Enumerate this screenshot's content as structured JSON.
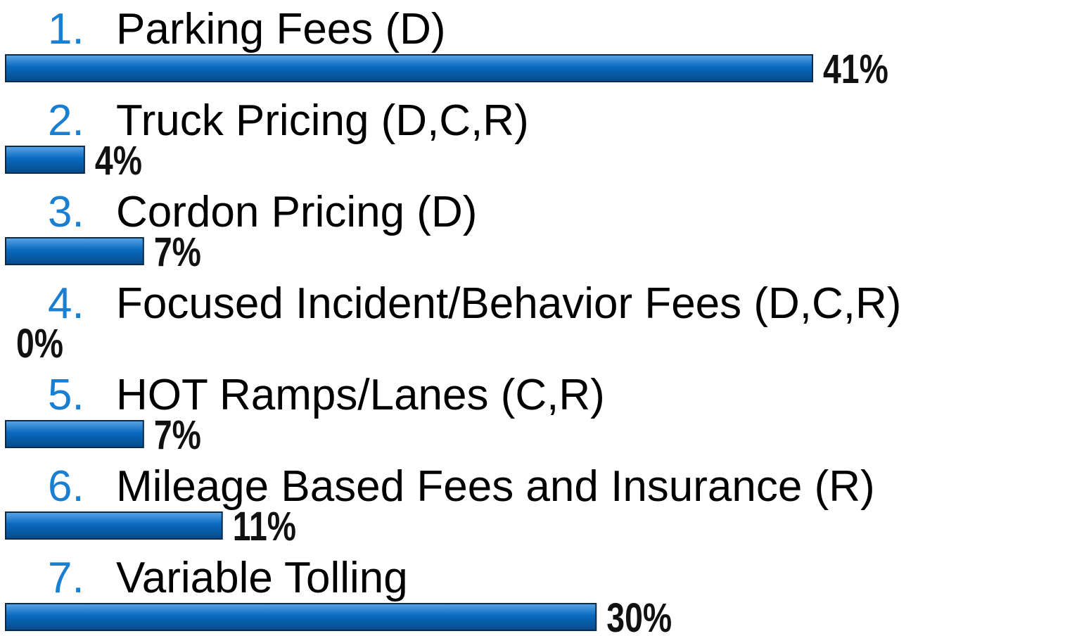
{
  "chart_data": {
    "type": "bar",
    "orientation": "horizontal",
    "numbers": [
      "1.",
      "2.",
      "3.",
      "4.",
      "5.",
      "6.",
      "7."
    ],
    "categories": [
      "Parking Fees (D)",
      "Truck Pricing (D,C,R)",
      "Cordon Pricing (D)",
      "Focused Incident/Behavior Fees (D,C,R)",
      "HOT Ramps/Lanes (C,R)",
      "Mileage Based Fees and Insurance (R)",
      "Variable Tolling"
    ],
    "values": [
      41,
      4,
      7,
      0,
      7,
      11,
      30
    ],
    "value_labels": [
      "41%",
      "4%",
      "7%",
      "0%",
      "7%",
      "11%",
      "30%"
    ],
    "color": "#0a6abf"
  }
}
